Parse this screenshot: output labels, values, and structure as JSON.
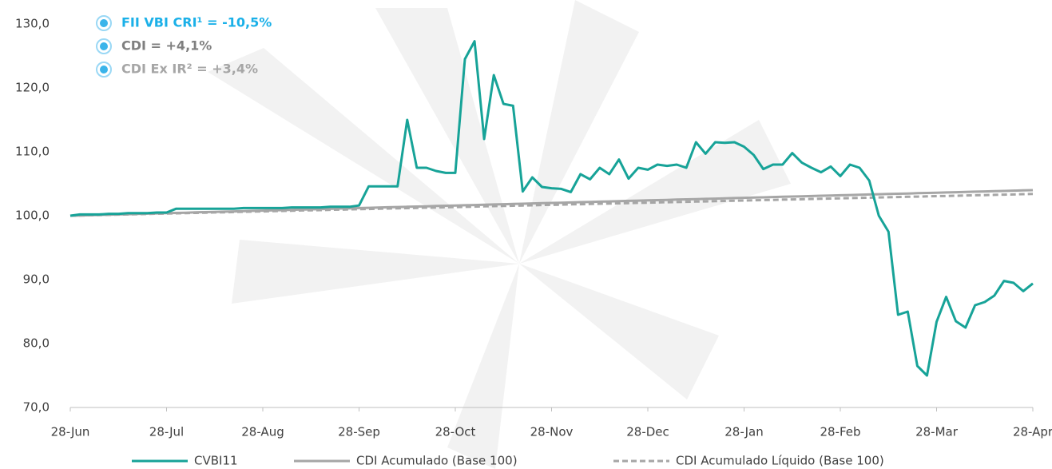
{
  "chart_data": {
    "type": "line",
    "categories": [
      "28-Jun",
      null,
      null,
      null,
      null,
      null,
      null,
      null,
      null,
      null,
      "28-Jul",
      null,
      null,
      null,
      null,
      null,
      null,
      null,
      null,
      null,
      "28-Aug",
      null,
      null,
      null,
      null,
      null,
      null,
      null,
      null,
      null,
      "28-Sep",
      null,
      null,
      null,
      null,
      null,
      null,
      null,
      null,
      null,
      "28-Oct",
      null,
      null,
      null,
      null,
      null,
      null,
      null,
      null,
      null,
      "28-Nov",
      null,
      null,
      null,
      null,
      null,
      null,
      null,
      null,
      null,
      "28-Dec",
      null,
      null,
      null,
      null,
      null,
      null,
      null,
      null,
      null,
      "28-Jan",
      null,
      null,
      null,
      null,
      null,
      null,
      null,
      null,
      null,
      "28-Feb",
      null,
      null,
      null,
      null,
      null,
      null,
      null,
      null,
      null,
      "28-Mar",
      null,
      null,
      null,
      null,
      null,
      null,
      null,
      null,
      null,
      "28-Apr"
    ],
    "series": [
      {
        "name": "CVBI11",
        "color": "#17a398",
        "width": 3,
        "dash": false,
        "values": [
          100,
          100.2,
          100.2,
          100.2,
          100.3,
          100.3,
          100.4,
          100.4,
          100.4,
          100.5,
          100.5,
          101.1,
          101.1,
          101.1,
          101.1,
          101.1,
          101.1,
          101.1,
          101.2,
          101.2,
          101.2,
          101.2,
          101.2,
          101.3,
          101.3,
          101.3,
          101.3,
          101.4,
          101.4,
          101.4,
          101.6,
          104.6,
          104.6,
          104.6,
          104.6,
          115,
          107.5,
          107.5,
          107,
          106.7,
          106.7,
          124.5,
          127.3,
          112,
          122,
          117.5,
          117.2,
          103.8,
          106,
          104.5,
          104.3,
          104.2,
          103.7,
          106.5,
          105.7,
          107.5,
          106.5,
          108.8,
          105.8,
          107.5,
          107.2,
          108,
          107.8,
          108,
          107.5,
          111.5,
          109.7,
          111.5,
          111.4,
          111.5,
          110.8,
          109.5,
          107.3,
          108,
          108,
          109.8,
          108.3,
          107.5,
          106.8,
          107.7,
          106.2,
          108,
          107.5,
          105.5,
          100,
          97.5,
          84.5,
          85,
          76.5,
          75,
          83.4,
          87.3,
          83.5,
          82.5,
          86,
          86.5,
          87.5,
          89.8,
          89.5,
          88.2,
          89.4
        ]
      },
      {
        "name": "CDI Acumulado (Base 100)",
        "color": "#a6a6a6",
        "width": 3,
        "dash": false,
        "values": [
          100,
          100.04,
          100.08,
          100.12,
          100.16,
          100.2,
          100.24,
          100.28,
          100.32,
          100.36,
          100.4,
          100.44,
          100.48,
          100.52,
          100.56,
          100.6,
          100.64,
          100.68,
          100.72,
          100.76,
          100.8,
          100.84,
          100.88,
          100.92,
          100.96,
          101,
          101.04,
          101.08,
          101.12,
          101.16,
          101.2,
          101.24,
          101.28,
          101.32,
          101.36,
          101.4,
          101.44,
          101.48,
          101.52,
          101.56,
          101.6,
          101.64,
          101.68,
          101.72,
          101.76,
          101.8,
          101.84,
          101.88,
          101.92,
          101.96,
          102,
          102.04,
          102.08,
          102.12,
          102.16,
          102.2,
          102.24,
          102.28,
          102.32,
          102.36,
          102.4,
          102.44,
          102.48,
          102.52,
          102.56,
          102.6,
          102.64,
          102.68,
          102.72,
          102.76,
          102.8,
          102.84,
          102.88,
          102.92,
          102.96,
          103,
          103.04,
          103.08,
          103.12,
          103.16,
          103.2,
          103.24,
          103.28,
          103.32,
          103.36,
          103.4,
          103.44,
          103.48,
          103.52,
          103.56,
          103.6,
          103.64,
          103.68,
          103.72,
          103.76,
          103.8,
          103.84,
          103.88,
          103.92,
          103.96,
          104
        ]
      },
      {
        "name": "CDI Acumulado Líquido (Base 100)",
        "color": "#a6a6a6",
        "width": 3,
        "dash": true,
        "values": [
          100,
          100.03,
          100.07,
          100.1,
          100.14,
          100.17,
          100.2,
          100.24,
          100.27,
          100.31,
          100.34,
          100.37,
          100.41,
          100.44,
          100.48,
          100.51,
          100.54,
          100.58,
          100.61,
          100.65,
          100.68,
          100.71,
          100.75,
          100.78,
          100.82,
          100.85,
          100.88,
          100.92,
          100.95,
          100.99,
          101.02,
          101.05,
          101.09,
          101.12,
          101.16,
          101.19,
          101.22,
          101.26,
          101.29,
          101.33,
          101.36,
          101.39,
          101.43,
          101.46,
          101.5,
          101.53,
          101.56,
          101.6,
          101.63,
          101.67,
          101.7,
          101.73,
          101.77,
          101.8,
          101.84,
          101.87,
          101.9,
          101.94,
          101.97,
          102.01,
          102.04,
          102.07,
          102.11,
          102.14,
          102.18,
          102.21,
          102.24,
          102.28,
          102.31,
          102.35,
          102.38,
          102.41,
          102.45,
          102.48,
          102.52,
          102.55,
          102.58,
          102.62,
          102.65,
          102.69,
          102.72,
          102.75,
          102.79,
          102.82,
          102.86,
          102.89,
          102.92,
          102.96,
          102.99,
          103.03,
          103.06,
          103.09,
          103.13,
          103.16,
          103.2,
          103.23,
          103.26,
          103.3,
          103.33,
          103.37,
          103.4
        ]
      }
    ],
    "ylim": [
      70,
      130
    ],
    "yticks": [
      {
        "value": 70,
        "label": "70,0"
      },
      {
        "value": 80,
        "label": "80,0"
      },
      {
        "value": 90,
        "label": "90,0"
      },
      {
        "value": 100,
        "label": "100,0"
      },
      {
        "value": 110,
        "label": "110,0"
      },
      {
        "value": 120,
        "label": "120,0"
      },
      {
        "value": 130,
        "label": "130,0"
      }
    ],
    "grid": false,
    "legend": "bottom",
    "annotations": [
      {
        "text": "FII VBI CRI¹ = -10,5%",
        "color": "#1ab0e8"
      },
      {
        "text": "CDI = +4,1%",
        "color": "#7f7f7f"
      },
      {
        "text": "CDI Ex IR² = +3,4%",
        "color": "#a6a6a6"
      }
    ]
  }
}
